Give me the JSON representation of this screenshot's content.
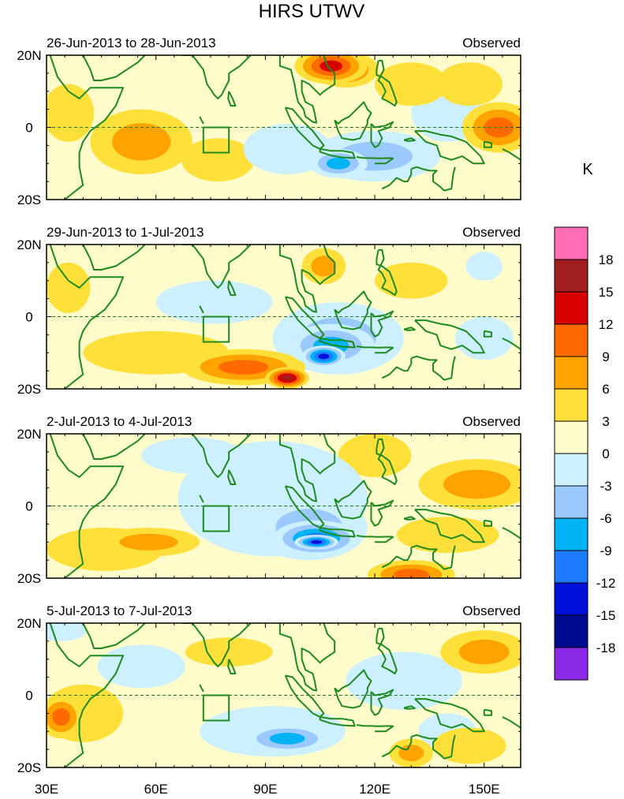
{
  "chart_data": {
    "type": "heatmap",
    "title": "HIRS UTWV",
    "units_label": "K",
    "x_axis": {
      "range": [
        30,
        160
      ],
      "ticks": [
        30,
        60,
        90,
        120,
        150
      ],
      "tick_labels": [
        "30E",
        "60E",
        "90E",
        "120E",
        "150E"
      ]
    },
    "y_axis": {
      "range": [
        -20,
        20
      ],
      "ticks": [
        20,
        0,
        -20
      ],
      "tick_labels": [
        "20N",
        "0",
        "20S"
      ]
    },
    "colorbar": {
      "levels": [
        -18,
        -15,
        -12,
        -9,
        -6,
        -3,
        0,
        3,
        6,
        9,
        12,
        15,
        18
      ],
      "level_labels": [
        "-18",
        "-15",
        "-12",
        "-9",
        "-6",
        "-3",
        "0",
        "3",
        "6",
        "9",
        "12",
        "15",
        "18"
      ],
      "colors": [
        "#8b2be8",
        "#000c8f",
        "#0010d8",
        "#1e7aff",
        "#00b4f4",
        "#99c9ff",
        "#ccf0ff",
        "#fffccc",
        "#ffe03a",
        "#ffa300",
        "#ff6a00",
        "#d80000",
        "#a01e1e",
        "#ff6eb4"
      ]
    },
    "panels": [
      {
        "date_label": "26-Jun-2013 to 28-Jun-2013",
        "type_label": "Observed",
        "anomalies": [
          {
            "lon": 108,
            "lat": 17,
            "value": 14,
            "rx": 10,
            "ry": 5
          },
          {
            "lon": 112,
            "lat": 16,
            "value": 10,
            "rx": 9,
            "ry": 5
          },
          {
            "lon": 154,
            "lat": 0,
            "value": 10,
            "rx": 10,
            "ry": 7
          },
          {
            "lon": 56,
            "lat": -4,
            "value": 8,
            "rx": 14,
            "ry": 9
          },
          {
            "lon": 36,
            "lat": 4,
            "value": 5,
            "rx": 7,
            "ry": 8
          },
          {
            "lon": 130,
            "lat": 12,
            "value": 4,
            "rx": 10,
            "ry": 6
          },
          {
            "lon": 146,
            "lat": 12,
            "value": 4,
            "rx": 9,
            "ry": 6
          },
          {
            "lon": 77,
            "lat": -9,
            "value": 4,
            "rx": 10,
            "ry": 6
          },
          {
            "lon": 110,
            "lat": -10,
            "value": -11,
            "rx": 8,
            "ry": 4
          },
          {
            "lon": 120,
            "lat": -8,
            "value": -6,
            "rx": 18,
            "ry": 7
          },
          {
            "lon": 96,
            "lat": -6,
            "value": -4,
            "rx": 12,
            "ry": 7
          },
          {
            "lon": 140,
            "lat": 4,
            "value": -3,
            "rx": 10,
            "ry": 8
          },
          {
            "lon": 92,
            "lat": 12,
            "value": -2,
            "rx": 9,
            "ry": 6
          }
        ]
      },
      {
        "date_label": "29-Jun-2013 to 1-Jul-2013",
        "type_label": "Observed",
        "anomalies": [
          {
            "lon": 106,
            "lat": -11,
            "value": -16,
            "rx": 6,
            "ry": 3
          },
          {
            "lon": 108,
            "lat": -8,
            "value": -11,
            "rx": 12,
            "ry": 6
          },
          {
            "lon": 110,
            "lat": -6,
            "value": -7,
            "rx": 18,
            "ry": 10
          },
          {
            "lon": 96,
            "lat": -17,
            "value": 15,
            "rx": 6,
            "ry": 3
          },
          {
            "lon": 84,
            "lat": -14,
            "value": 9,
            "rx": 17,
            "ry": 5
          },
          {
            "lon": 60,
            "lat": -10,
            "value": 5,
            "rx": 20,
            "ry": 6
          },
          {
            "lon": 106,
            "lat": 14,
            "value": 7,
            "rx": 6,
            "ry": 5
          },
          {
            "lon": 36,
            "lat": 8,
            "value": 4,
            "rx": 6,
            "ry": 7
          },
          {
            "lon": 130,
            "lat": 10,
            "value": 4,
            "rx": 10,
            "ry": 5
          },
          {
            "lon": 76,
            "lat": 4,
            "value": -3,
            "rx": 16,
            "ry": 6
          },
          {
            "lon": 150,
            "lat": 14,
            "value": -4,
            "rx": 5,
            "ry": 4
          },
          {
            "lon": 150,
            "lat": -6,
            "value": -3,
            "rx": 8,
            "ry": 6
          }
        ]
      },
      {
        "date_label": "2-Jul-2013 to 4-Jul-2013",
        "type_label": "Observed",
        "anomalies": [
          {
            "lon": 104,
            "lat": -10,
            "value": -16,
            "rx": 6,
            "ry": 2
          },
          {
            "lon": 104,
            "lat": -9,
            "value": -12,
            "rx": 12,
            "ry": 5
          },
          {
            "lon": 102,
            "lat": -6,
            "value": -7,
            "rx": 16,
            "ry": 9
          },
          {
            "lon": 92,
            "lat": 2,
            "value": -4,
            "rx": 26,
            "ry": 16
          },
          {
            "lon": 148,
            "lat": 6,
            "value": 8,
            "rx": 16,
            "ry": 7
          },
          {
            "lon": 130,
            "lat": -19,
            "value": 10,
            "rx": 12,
            "ry": 4
          },
          {
            "lon": 58,
            "lat": -10,
            "value": 7,
            "rx": 14,
            "ry": 4
          },
          {
            "lon": 46,
            "lat": -12,
            "value": 4,
            "rx": 16,
            "ry": 6
          },
          {
            "lon": 140,
            "lat": -8,
            "value": 4,
            "rx": 14,
            "ry": 5
          },
          {
            "lon": 70,
            "lat": 14,
            "value": -3,
            "rx": 14,
            "ry": 5
          },
          {
            "lon": 120,
            "lat": 14,
            "value": 3,
            "rx": 10,
            "ry": 6
          }
        ]
      },
      {
        "date_label": "5-Jul-2013 to 7-Jul-2013",
        "type_label": "Observed",
        "anomalies": [
          {
            "lon": 96,
            "lat": -12,
            "value": -9,
            "rx": 12,
            "ry": 4
          },
          {
            "lon": 92,
            "lat": -10,
            "value": -5,
            "rx": 20,
            "ry": 7
          },
          {
            "lon": 34,
            "lat": -6,
            "value": 9,
            "rx": 6,
            "ry": 6
          },
          {
            "lon": 40,
            "lat": -5,
            "value": 5,
            "rx": 11,
            "ry": 8
          },
          {
            "lon": 150,
            "lat": 12,
            "value": 7,
            "rx": 12,
            "ry": 6
          },
          {
            "lon": 130,
            "lat": -16,
            "value": 6,
            "rx": 6,
            "ry": 4
          },
          {
            "lon": 146,
            "lat": -14,
            "value": 4,
            "rx": 10,
            "ry": 5
          },
          {
            "lon": 34,
            "lat": 18,
            "value": -5,
            "rx": 7,
            "ry": 3
          },
          {
            "lon": 56,
            "lat": 8,
            "value": -3,
            "rx": 12,
            "ry": 6
          },
          {
            "lon": 128,
            "lat": 4,
            "value": -3,
            "rx": 16,
            "ry": 8
          },
          {
            "lon": 140,
            "lat": -10,
            "value": -3,
            "rx": 8,
            "ry": 5
          },
          {
            "lon": 80,
            "lat": 12,
            "value": 3,
            "rx": 12,
            "ry": 4
          }
        ]
      }
    ]
  }
}
